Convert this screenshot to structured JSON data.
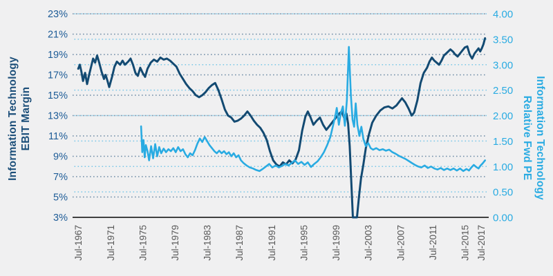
{
  "chart_data": {
    "type": "line",
    "title": "",
    "background_color": "#f0f0f1",
    "grid_style": "dotted",
    "legend": "none",
    "x_axis": {
      "tick_labels": [
        "Jul-1967",
        "Jul-1971",
        "Jul-1975",
        "Jul-1979",
        "Jul-1983",
        "Jul-1987",
        "Jul-1991",
        "Jul-1995",
        "Jul-1999",
        "Jul-2003",
        "Jul-2007",
        "Jul-2011",
        "Jul-2015",
        "Jul-2017"
      ],
      "tick_years": [
        1967.5,
        1971.5,
        1975.5,
        1979.5,
        1983.5,
        1987.5,
        1991.5,
        1995.5,
        1999.5,
        2003.5,
        2007.5,
        2011.5,
        2015.5,
        2017.5
      ],
      "min": 1966.8,
      "max": 2018.2,
      "label_color": "#595959",
      "axis_line_color": "#404040"
    },
    "left_axis": {
      "title_line1": "Information Technology",
      "title_line2": "EBIT Margin",
      "tick_labels": [
        "23%",
        "21%",
        "19%",
        "17%",
        "15%",
        "13%",
        "11%",
        "9%",
        "7%",
        "5%",
        "3%"
      ],
      "min": 3,
      "max": 23,
      "tick_step": 2,
      "label_color": "#1e5c97",
      "title_color": "#1b4e79",
      "grid_color": "#1f4e79"
    },
    "right_axis": {
      "title_line1": "Information Technology",
      "title_line2": "Relative Fwd PE",
      "tick_labels": [
        "4.00",
        "3.50",
        "3.00",
        "2.50",
        "2.00",
        "1.50",
        "1.00",
        "0.50",
        "0.00"
      ],
      "min": 0,
      "max": 4,
      "tick_step": 0.5,
      "label_color": "#29abe2",
      "title_color": "#29abe2",
      "grid_color": "#29abe2"
    },
    "series": [
      {
        "name": "Information Technology EBIT Margin",
        "axis": "left",
        "color": "#134a72",
        "stroke_width": 3,
        "points": [
          [
            1967.5,
            17.6
          ],
          [
            1967.7,
            18.0
          ],
          [
            1967.9,
            17.3
          ],
          [
            1968.1,
            16.4
          ],
          [
            1968.35,
            17.2
          ],
          [
            1968.6,
            16.1
          ],
          [
            1968.85,
            17.0
          ],
          [
            1969.1,
            17.8
          ],
          [
            1969.35,
            18.6
          ],
          [
            1969.6,
            18.2
          ],
          [
            1969.85,
            18.9
          ],
          [
            1970.1,
            18.2
          ],
          [
            1970.4,
            17.3
          ],
          [
            1970.7,
            16.6
          ],
          [
            1970.9,
            17.0
          ],
          [
            1971.1,
            16.5
          ],
          [
            1971.35,
            15.8
          ],
          [
            1971.7,
            16.8
          ],
          [
            1972.0,
            17.8
          ],
          [
            1972.3,
            18.3
          ],
          [
            1972.7,
            18.0
          ],
          [
            1973.0,
            18.4
          ],
          [
            1973.3,
            18.0
          ],
          [
            1973.7,
            18.3
          ],
          [
            1974.0,
            18.6
          ],
          [
            1974.3,
            18.0
          ],
          [
            1974.6,
            17.2
          ],
          [
            1974.9,
            16.9
          ],
          [
            1975.2,
            17.7
          ],
          [
            1975.5,
            17.2
          ],
          [
            1975.8,
            16.8
          ],
          [
            1976.1,
            17.6
          ],
          [
            1976.5,
            18.2
          ],
          [
            1976.9,
            18.5
          ],
          [
            1977.3,
            18.3
          ],
          [
            1977.7,
            18.7
          ],
          [
            1978.1,
            18.5
          ],
          [
            1978.5,
            18.6
          ],
          [
            1978.9,
            18.4
          ],
          [
            1979.3,
            18.1
          ],
          [
            1979.7,
            17.8
          ],
          [
            1980.1,
            17.1
          ],
          [
            1980.5,
            16.6
          ],
          [
            1980.9,
            16.1
          ],
          [
            1981.3,
            15.7
          ],
          [
            1981.7,
            15.4
          ],
          [
            1982.1,
            15.0
          ],
          [
            1982.5,
            14.8
          ],
          [
            1982.9,
            15.0
          ],
          [
            1983.3,
            15.3
          ],
          [
            1983.7,
            15.7
          ],
          [
            1984.1,
            16.0
          ],
          [
            1984.5,
            16.2
          ],
          [
            1984.9,
            15.5
          ],
          [
            1985.3,
            14.6
          ],
          [
            1985.7,
            13.6
          ],
          [
            1986.1,
            13.0
          ],
          [
            1986.5,
            12.8
          ],
          [
            1986.9,
            12.4
          ],
          [
            1987.3,
            12.5
          ],
          [
            1987.7,
            12.7
          ],
          [
            1988.1,
            13.0
          ],
          [
            1988.5,
            13.4
          ],
          [
            1988.9,
            13.0
          ],
          [
            1989.3,
            12.5
          ],
          [
            1989.7,
            12.1
          ],
          [
            1990.1,
            11.8
          ],
          [
            1990.5,
            11.3
          ],
          [
            1990.9,
            10.6
          ],
          [
            1991.3,
            9.5
          ],
          [
            1991.7,
            8.6
          ],
          [
            1992.1,
            8.2
          ],
          [
            1992.5,
            8.0
          ],
          [
            1992.9,
            8.4
          ],
          [
            1993.3,
            8.2
          ],
          [
            1993.7,
            8.6
          ],
          [
            1994.1,
            8.3
          ],
          [
            1994.5,
            8.7
          ],
          [
            1994.9,
            9.6
          ],
          [
            1995.3,
            11.5
          ],
          [
            1995.7,
            12.9
          ],
          [
            1996.0,
            13.4
          ],
          [
            1996.3,
            12.9
          ],
          [
            1996.7,
            12.1
          ],
          [
            1997.1,
            12.5
          ],
          [
            1997.5,
            12.8
          ],
          [
            1997.9,
            12.1
          ],
          [
            1998.3,
            11.6
          ],
          [
            1998.7,
            12.0
          ],
          [
            1999.1,
            12.4
          ],
          [
            1999.5,
            12.8
          ],
          [
            1999.9,
            13.2
          ],
          [
            2000.2,
            13.4
          ],
          [
            2000.5,
            12.8
          ],
          [
            2000.8,
            13.2
          ],
          [
            2001.0,
            12.2
          ],
          [
            2001.2,
            10.0
          ],
          [
            2001.4,
            6.5
          ],
          [
            2001.6,
            3.0
          ],
          [
            2002.1,
            3.0
          ],
          [
            2002.35,
            5.0
          ],
          [
            2002.6,
            6.8
          ],
          [
            2002.9,
            8.2
          ],
          [
            2003.2,
            9.8
          ],
          [
            2003.6,
            11.2
          ],
          [
            2004.0,
            12.3
          ],
          [
            2004.5,
            13.0
          ],
          [
            2005.0,
            13.5
          ],
          [
            2005.5,
            13.8
          ],
          [
            2006.0,
            13.9
          ],
          [
            2006.5,
            13.7
          ],
          [
            2007.0,
            14.0
          ],
          [
            2007.4,
            14.4
          ],
          [
            2007.7,
            14.7
          ],
          [
            2008.1,
            14.3
          ],
          [
            2008.5,
            13.7
          ],
          [
            2008.9,
            13.0
          ],
          [
            2009.2,
            13.3
          ],
          [
            2009.6,
            14.5
          ],
          [
            2010.0,
            16.2
          ],
          [
            2010.4,
            17.2
          ],
          [
            2010.8,
            17.7
          ],
          [
            2011.1,
            18.3
          ],
          [
            2011.4,
            18.7
          ],
          [
            2011.7,
            18.4
          ],
          [
            2012.0,
            18.2
          ],
          [
            2012.3,
            18.0
          ],
          [
            2012.6,
            18.4
          ],
          [
            2012.9,
            18.9
          ],
          [
            2013.3,
            19.2
          ],
          [
            2013.7,
            19.5
          ],
          [
            2014.0,
            19.3
          ],
          [
            2014.3,
            19.0
          ],
          [
            2014.6,
            18.8
          ],
          [
            2014.9,
            19.1
          ],
          [
            2015.2,
            19.4
          ],
          [
            2015.5,
            19.7
          ],
          [
            2015.8,
            19.8
          ],
          [
            2016.1,
            19.0
          ],
          [
            2016.4,
            18.6
          ],
          [
            2016.7,
            19.1
          ],
          [
            2017.0,
            19.4
          ],
          [
            2017.2,
            19.6
          ],
          [
            2017.4,
            19.3
          ],
          [
            2017.6,
            19.6
          ],
          [
            2017.8,
            20.0
          ],
          [
            2018.0,
            20.6
          ]
        ]
      },
      {
        "name": "Information Technology Relative Fwd PE",
        "axis": "right",
        "color": "#29abe2",
        "stroke_width": 2.6,
        "points": [
          [
            1975.3,
            1.79
          ],
          [
            1975.45,
            1.28
          ],
          [
            1975.6,
            1.52
          ],
          [
            1975.75,
            1.18
          ],
          [
            1975.9,
            1.42
          ],
          [
            1976.1,
            1.3
          ],
          [
            1976.3,
            1.12
          ],
          [
            1976.55,
            1.4
          ],
          [
            1976.8,
            1.16
          ],
          [
            1977.05,
            1.44
          ],
          [
            1977.3,
            1.2
          ],
          [
            1977.55,
            1.38
          ],
          [
            1977.8,
            1.26
          ],
          [
            1978.1,
            1.35
          ],
          [
            1978.4,
            1.28
          ],
          [
            1978.7,
            1.34
          ],
          [
            1979.0,
            1.3
          ],
          [
            1979.3,
            1.36
          ],
          [
            1979.6,
            1.28
          ],
          [
            1979.9,
            1.38
          ],
          [
            1980.2,
            1.3
          ],
          [
            1980.5,
            1.34
          ],
          [
            1980.8,
            1.24
          ],
          [
            1981.1,
            1.18
          ],
          [
            1981.4,
            1.26
          ],
          [
            1981.7,
            1.22
          ],
          [
            1982.0,
            1.32
          ],
          [
            1982.3,
            1.45
          ],
          [
            1982.6,
            1.55
          ],
          [
            1982.9,
            1.48
          ],
          [
            1983.2,
            1.58
          ],
          [
            1983.5,
            1.5
          ],
          [
            1983.8,
            1.42
          ],
          [
            1984.1,
            1.36
          ],
          [
            1984.4,
            1.3
          ],
          [
            1984.7,
            1.26
          ],
          [
            1985.0,
            1.31
          ],
          [
            1985.3,
            1.26
          ],
          [
            1985.6,
            1.3
          ],
          [
            1985.9,
            1.24
          ],
          [
            1986.2,
            1.28
          ],
          [
            1986.5,
            1.2
          ],
          [
            1986.8,
            1.26
          ],
          [
            1987.1,
            1.18
          ],
          [
            1987.4,
            1.22
          ],
          [
            1987.7,
            1.12
          ],
          [
            1988.0,
            1.07
          ],
          [
            1988.4,
            1.02
          ],
          [
            1988.8,
            0.98
          ],
          [
            1989.2,
            0.96
          ],
          [
            1989.6,
            0.93
          ],
          [
            1990.0,
            0.91
          ],
          [
            1990.4,
            0.95
          ],
          [
            1990.8,
            1.0
          ],
          [
            1991.2,
            1.05
          ],
          [
            1991.6,
            0.98
          ],
          [
            1992.0,
            1.02
          ],
          [
            1992.4,
            0.98
          ],
          [
            1992.8,
            1.01
          ],
          [
            1993.2,
            1.05
          ],
          [
            1993.6,
            1.02
          ],
          [
            1994.0,
            1.07
          ],
          [
            1994.4,
            1.12
          ],
          [
            1994.8,
            1.05
          ],
          [
            1995.2,
            1.09
          ],
          [
            1995.6,
            1.03
          ],
          [
            1996.0,
            1.08
          ],
          [
            1996.4,
            0.99
          ],
          [
            1996.8,
            1.05
          ],
          [
            1997.2,
            1.1
          ],
          [
            1997.6,
            1.18
          ],
          [
            1998.0,
            1.28
          ],
          [
            1998.4,
            1.42
          ],
          [
            1998.8,
            1.58
          ],
          [
            1999.1,
            1.78
          ],
          [
            1999.4,
            1.98
          ],
          [
            1999.6,
            2.15
          ],
          [
            1999.85,
            1.82
          ],
          [
            2000.1,
            2.05
          ],
          [
            2000.35,
            2.18
          ],
          [
            2000.6,
            1.8
          ],
          [
            2000.85,
            2.3
          ],
          [
            2001.1,
            3.35
          ],
          [
            2001.35,
            2.4
          ],
          [
            2001.55,
            1.92
          ],
          [
            2001.75,
            1.78
          ],
          [
            2001.95,
            2.24
          ],
          [
            2002.15,
            1.82
          ],
          [
            2002.4,
            1.6
          ],
          [
            2002.65,
            1.78
          ],
          [
            2002.9,
            1.54
          ],
          [
            2003.2,
            1.4
          ],
          [
            2003.5,
            1.46
          ],
          [
            2003.8,
            1.36
          ],
          [
            2004.1,
            1.33
          ],
          [
            2004.5,
            1.36
          ],
          [
            2004.9,
            1.32
          ],
          [
            2005.3,
            1.34
          ],
          [
            2005.7,
            1.31
          ],
          [
            2006.1,
            1.33
          ],
          [
            2006.5,
            1.28
          ],
          [
            2006.9,
            1.25
          ],
          [
            2007.3,
            1.21
          ],
          [
            2007.7,
            1.18
          ],
          [
            2008.1,
            1.15
          ],
          [
            2008.5,
            1.11
          ],
          [
            2008.9,
            1.07
          ],
          [
            2009.3,
            1.03
          ],
          [
            2009.7,
            1.0
          ],
          [
            2010.1,
            0.98
          ],
          [
            2010.5,
            1.02
          ],
          [
            2010.9,
            0.97
          ],
          [
            2011.3,
            1.0
          ],
          [
            2011.7,
            0.96
          ],
          [
            2012.1,
            0.94
          ],
          [
            2012.5,
            0.97
          ],
          [
            2012.9,
            0.93
          ],
          [
            2013.3,
            0.96
          ],
          [
            2013.7,
            0.93
          ],
          [
            2014.1,
            0.96
          ],
          [
            2014.5,
            0.92
          ],
          [
            2014.9,
            0.96
          ],
          [
            2015.3,
            0.91
          ],
          [
            2015.7,
            0.95
          ],
          [
            2016.0,
            0.92
          ],
          [
            2016.3,
            0.98
          ],
          [
            2016.6,
            1.03
          ],
          [
            2016.9,
            0.99
          ],
          [
            2017.2,
            0.96
          ],
          [
            2017.45,
            1.02
          ],
          [
            2017.7,
            1.06
          ],
          [
            2018.0,
            1.12
          ]
        ]
      }
    ]
  }
}
